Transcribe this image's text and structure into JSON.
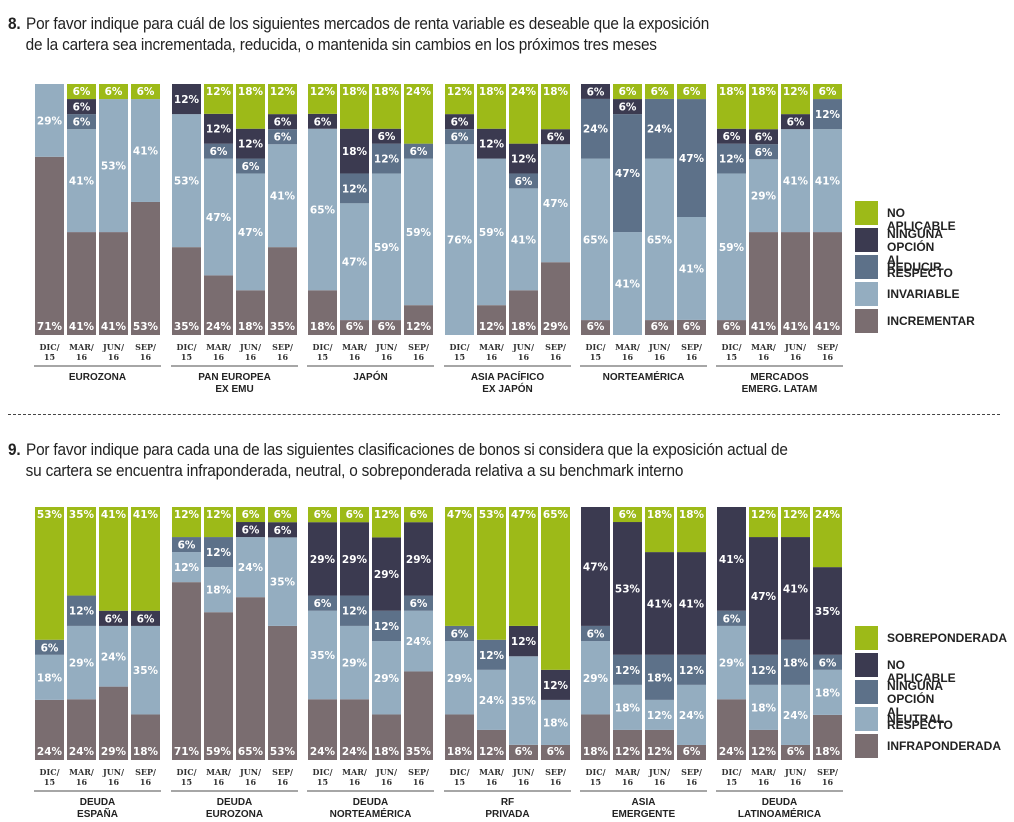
{
  "chart_data": [
    {
      "type": "bar",
      "stacked": true,
      "percent": true,
      "title": "8. Por favor indique para cuál de los siguientes mercados de renta variable es deseable que la exposición de la cartera sea incrementada, reducida, o mantenida sin cambios en los próximos tres meses",
      "title_num": "8.",
      "title_line1": "Por favor indique para cuál de los siguientes mercados de renta variable es deseable que la exposición",
      "title_line2": "de la cartera sea incrementada, reducida, o mantenida sin cambios en los próximos tres meses",
      "period_labels": [
        [
          "DIC/",
          "15"
        ],
        [
          "MAR/",
          "16"
        ],
        [
          "JUN/",
          "16"
        ],
        [
          "SEP/",
          "16"
        ]
      ],
      "series": [
        {
          "name": "INCREMENTAR",
          "color": "#7a6d70"
        },
        {
          "name": "INVARIABLE",
          "color": "#94adc0"
        },
        {
          "name": "REDUCIR",
          "color": "#5d7189"
        },
        {
          "name": "NINGUNA OPCIÓN\nAL RESPECTO",
          "color": "#3b3a50"
        },
        {
          "name": "NO APLICABLE",
          "color": "#9dba18"
        }
      ],
      "legend_order": [
        4,
        3,
        2,
        1,
        0
      ],
      "legend_position": "right",
      "groups": [
        {
          "name": [
            "EUROZONA"
          ],
          "bars": [
            [
              71,
              29,
              0,
              0,
              0
            ],
            [
              41,
              41,
              6,
              6,
              6
            ],
            [
              41,
              53,
              0,
              0,
              6
            ],
            [
              53,
              41,
              0,
              0,
              6
            ]
          ]
        },
        {
          "name": [
            "PAN EUROPEA",
            "EX EMU"
          ],
          "bars": [
            [
              35,
              53,
              0,
              12,
              0
            ],
            [
              24,
              47,
              6,
              12,
              12
            ],
            [
              18,
              47,
              6,
              12,
              18
            ],
            [
              35,
              41,
              6,
              6,
              12
            ]
          ]
        },
        {
          "name": [
            "JAPÓN"
          ],
          "bars": [
            [
              18,
              65,
              0,
              6,
              12
            ],
            [
              6,
              47,
              12,
              18,
              18
            ],
            [
              6,
              59,
              12,
              6,
              18
            ],
            [
              12,
              59,
              6,
              0,
              24
            ]
          ]
        },
        {
          "name": [
            "ASIA PACÍFICO",
            "EX JAPÓN"
          ],
          "bars": [
            [
              0,
              76,
              6,
              6,
              12
            ],
            [
              12,
              59,
              0,
              12,
              18
            ],
            [
              18,
              41,
              6,
              12,
              24
            ],
            [
              29,
              47,
              0,
              6,
              18
            ]
          ]
        },
        {
          "name": [
            "NORTEAMÉRICA"
          ],
          "bars": [
            [
              6,
              65,
              24,
              6,
              0
            ],
            [
              0,
              41,
              47,
              6,
              6
            ],
            [
              6,
              65,
              24,
              0,
              6
            ],
            [
              6,
              41,
              47,
              0,
              6
            ]
          ]
        },
        {
          "name": [
            "MERCADOS",
            "EMERG. LATAM"
          ],
          "bars": [
            [
              6,
              59,
              12,
              6,
              18
            ],
            [
              41,
              29,
              6,
              6,
              18
            ],
            [
              41,
              41,
              0,
              6,
              12
            ],
            [
              41,
              41,
              12,
              0,
              6
            ]
          ]
        }
      ]
    },
    {
      "type": "bar",
      "stacked": true,
      "percent": true,
      "title": "9. Por favor indique para cada una de las siguientes clasificaciones de bonos si considera que la exposición actual de su cartera se encuentra infraponderada, neutral, o sobreponderada relativa a su benchmark interno",
      "title_num": "9.",
      "title_line1": "Por favor indique para cada una de las siguientes clasificaciones de bonos si considera que la exposición actual de",
      "title_line2": "su cartera se encuentra infraponderada, neutral, o sobreponderada relativa a su benchmark interno",
      "period_labels": [
        [
          "DIC/",
          "15"
        ],
        [
          "MAR/",
          "16"
        ],
        [
          "JUN/",
          "16"
        ],
        [
          "SEP/",
          "16"
        ]
      ],
      "series": [
        {
          "name": "INFRAPONDERADA",
          "color": "#7a6d70"
        },
        {
          "name": "NEUTRAL",
          "color": "#94adc0"
        },
        {
          "name": "NINGUNA OPCIÓN\nAL RESPECTO",
          "color": "#5d7189"
        },
        {
          "name": "NO APLICABLE",
          "color": "#3b3a50"
        },
        {
          "name": "SOBREPONDERADA",
          "color": "#9dba18"
        }
      ],
      "legend_order": [
        4,
        3,
        2,
        1,
        0
      ],
      "legend_position": "right",
      "groups": [
        {
          "name": [
            "DEUDA",
            "ESPAÑA"
          ],
          "bars": [
            [
              24,
              18,
              6,
              0,
              53
            ],
            [
              24,
              29,
              12,
              0,
              35
            ],
            [
              29,
              24,
              0,
              6,
              41
            ],
            [
              18,
              35,
              0,
              6,
              41
            ]
          ]
        },
        {
          "name": [
            "DEUDA",
            "EUROZONA"
          ],
          "bars": [
            [
              71,
              12,
              6,
              0,
              12
            ],
            [
              59,
              18,
              12,
              0,
              12
            ],
            [
              65,
              24,
              0,
              6,
              6
            ],
            [
              53,
              35,
              0,
              6,
              6
            ]
          ]
        },
        {
          "name": [
            "DEUDA",
            "NORTEAMÉRICA"
          ],
          "bars": [
            [
              24,
              35,
              6,
              29,
              6
            ],
            [
              24,
              29,
              12,
              29,
              6
            ],
            [
              18,
              29,
              12,
              29,
              12
            ],
            [
              35,
              24,
              6,
              29,
              6
            ]
          ]
        },
        {
          "name": [
            "RF",
            "PRIVADA"
          ],
          "bars": [
            [
              18,
              29,
              6,
              0,
              47
            ],
            [
              12,
              24,
              12,
              0,
              53
            ],
            [
              6,
              35,
              0,
              12,
              47
            ],
            [
              6,
              18,
              0,
              12,
              65
            ]
          ]
        },
        {
          "name": [
            "ASIA",
            "EMERGENTE"
          ],
          "bars": [
            [
              18,
              29,
              6,
              47,
              0
            ],
            [
              12,
              18,
              12,
              53,
              6
            ],
            [
              12,
              12,
              18,
              41,
              18
            ],
            [
              6,
              24,
              12,
              41,
              18
            ]
          ]
        },
        {
          "name": [
            "DEUDA",
            "LATINOAMÉRICA"
          ],
          "bars": [
            [
              24,
              29,
              6,
              41,
              0
            ],
            [
              12,
              18,
              12,
              47,
              12
            ],
            [
              6,
              24,
              18,
              41,
              12
            ],
            [
              18,
              18,
              6,
              35,
              24
            ]
          ]
        }
      ]
    }
  ]
}
